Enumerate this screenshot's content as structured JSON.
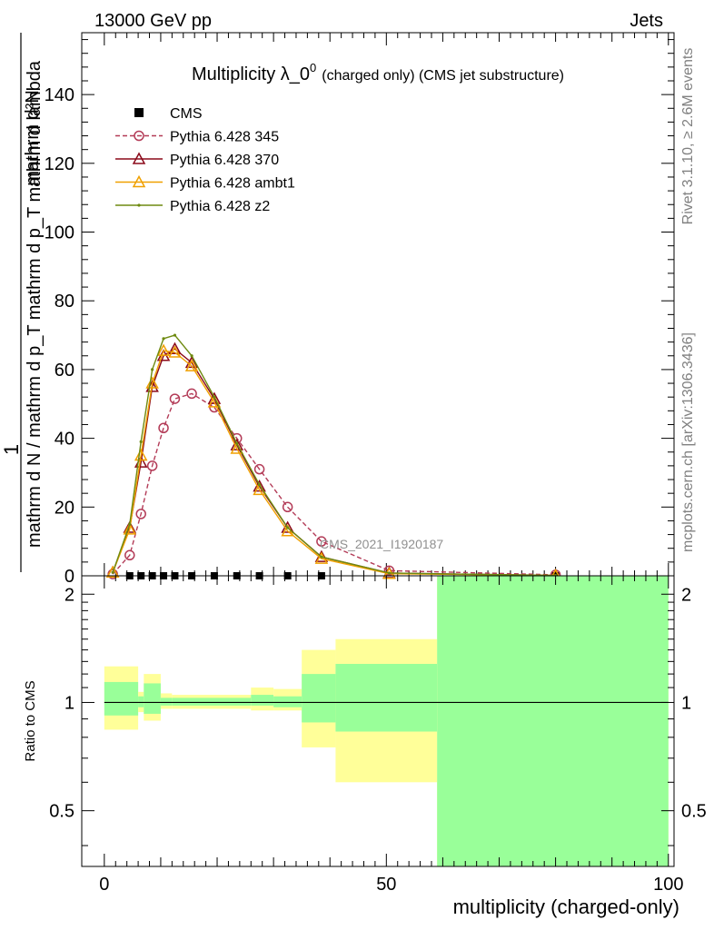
{
  "header": {
    "left": "13000 GeV pp",
    "right": "Jets"
  },
  "side_text": {
    "rivet": "Rivet 3.1.10, ≥ 2.6M events",
    "mcplots": "mcplots.cern.ch [arXiv:1306.3436]"
  },
  "chart_data": [
    {
      "type": "line",
      "title_main": "Multiplicity λ_0",
      "title_sup": "0",
      "title_rest": "(charged only) (CMS jet substructure)",
      "ylabel_numerator": "mathrm d²N",
      "ylabel_denominator": "mathrm d N / mathrm d p_T mathrm d p_T mathrm d lambda",
      "ylabel_prefix": "1",
      "xlim": [
        -4,
        101
      ],
      "ylim": [
        0,
        158
      ],
      "yticks": [
        0,
        20,
        40,
        60,
        80,
        100,
        120,
        140
      ],
      "ytick_labels": [
        "0",
        "20",
        "40",
        "60",
        "80",
        "100",
        "120",
        "140"
      ],
      "annotation": "CMS_2021_I1920187",
      "legend": {
        "placement": "top-left",
        "entries": [
          {
            "label": "CMS",
            "marker": "square",
            "color": "#000000"
          },
          {
            "label": "Pythia 6.428 345",
            "marker": "circle",
            "color": "#b33b57"
          },
          {
            "label": "Pythia 6.428 370",
            "marker": "triangle",
            "color": "#8b0a1a"
          },
          {
            "label": "Pythia 6.428 ambt1",
            "marker": "triangle",
            "color": "#f0a000"
          },
          {
            "label": "Pythia 6.428 z2",
            "marker": "dot",
            "color": "#6e8a10"
          }
        ]
      },
      "series": [
        {
          "name": "CMS",
          "color": "#000000",
          "x": [
            4.5,
            6.5,
            8.5,
            10.5,
            12.5,
            15.5,
            19.5,
            23.5,
            27.5,
            32.5,
            38.5,
            80
          ],
          "y": [
            0,
            0,
            0,
            0,
            0,
            0,
            0,
            0,
            0,
            0,
            0,
            0
          ]
        },
        {
          "name": "Pythia 6.428 345",
          "color": "#b33b57",
          "x": [
            1.5,
            4.5,
            6.5,
            8.5,
            10.5,
            12.5,
            15.5,
            19.5,
            23.5,
            27.5,
            32.5,
            38.5,
            50.5,
            80
          ],
          "y": [
            0.5,
            6,
            18,
            32,
            43,
            51.5,
            53,
            49,
            40,
            31,
            20,
            10,
            1.5,
            0.3
          ]
        },
        {
          "name": "Pythia 6.428 370",
          "color": "#8b0a1a",
          "x": [
            1.5,
            4.5,
            6.5,
            8.5,
            10.5,
            12.5,
            15.5,
            19.5,
            23.5,
            27.5,
            32.5,
            38.5,
            50.5,
            80
          ],
          "y": [
            1,
            14,
            33,
            55,
            64,
            66,
            62,
            51.5,
            38,
            26,
            14,
            5.5,
            0.8,
            0.1
          ]
        },
        {
          "name": "Pythia 6.428 ambt1",
          "color": "#f0a000",
          "x": [
            1.5,
            4.5,
            6.5,
            8.5,
            10.5,
            12.5,
            15.5,
            19.5,
            23.5,
            27.5,
            32.5,
            38.5,
            50.5,
            80
          ],
          "y": [
            1,
            13.5,
            35,
            56,
            65.5,
            65,
            61,
            50.5,
            37,
            25,
            13,
            5,
            0.6,
            0.1
          ]
        },
        {
          "name": "Pythia 6.428 z2",
          "color": "#6e8a10",
          "x": [
            1.5,
            4.5,
            6.5,
            8.5,
            10.5,
            12.5,
            15.5,
            19.5,
            23.5,
            27.5,
            32.5,
            38.5,
            50.5,
            80
          ],
          "y": [
            1,
            15,
            39,
            60,
            69,
            70,
            64,
            52,
            38.5,
            26.5,
            14,
            5.5,
            0.8,
            0.1
          ]
        }
      ]
    },
    {
      "type": "area",
      "ylabel": "Ratio to CMS",
      "xlabel": "multiplicity (charged-only)",
      "xlim": [
        -4,
        101
      ],
      "ylim": [
        0.35,
        2.25
      ],
      "yticks": [
        0.5,
        1,
        2
      ],
      "ytick_labels": [
        "0.5",
        "1",
        "2"
      ],
      "xticks": [
        0,
        50,
        100
      ],
      "xtick_labels": [
        "0",
        "50",
        "100"
      ],
      "reference_line": 1,
      "band_colors": {
        "outer": "#ffff99",
        "inner": "#99ff99"
      },
      "bands": [
        {
          "x0": 0,
          "x1": 6,
          "outer": [
            0.84,
            1.26
          ],
          "inner": [
            0.92,
            1.14
          ]
        },
        {
          "x0": 6,
          "x1": 7,
          "outer": [
            0.94,
            1.07
          ],
          "inner": [
            0.97,
            1.04
          ]
        },
        {
          "x0": 7,
          "x1": 10,
          "outer": [
            0.89,
            1.2
          ],
          "inner": [
            0.93,
            1.13
          ]
        },
        {
          "x0": 10,
          "x1": 12,
          "outer": [
            0.96,
            1.06
          ],
          "inner": [
            0.98,
            1.03
          ]
        },
        {
          "x0": 12,
          "x1": 26,
          "outer": [
            0.96,
            1.05
          ],
          "inner": [
            0.98,
            1.03
          ]
        },
        {
          "x0": 26,
          "x1": 30,
          "outer": [
            0.95,
            1.1
          ],
          "inner": [
            0.98,
            1.05
          ]
        },
        {
          "x0": 30,
          "x1": 35,
          "outer": [
            0.95,
            1.09
          ],
          "inner": [
            0.97,
            1.04
          ]
        },
        {
          "x0": 35,
          "x1": 41,
          "outer": [
            0.75,
            1.4
          ],
          "inner": [
            0.88,
            1.2
          ]
        },
        {
          "x0": 41,
          "x1": 59,
          "outer": [
            0.6,
            1.5
          ],
          "inner": [
            0.83,
            1.28
          ]
        },
        {
          "x0": 59,
          "x1": 100,
          "outer": [
            0.35,
            2.25
          ],
          "inner": [
            0.35,
            2.25
          ]
        }
      ]
    }
  ]
}
